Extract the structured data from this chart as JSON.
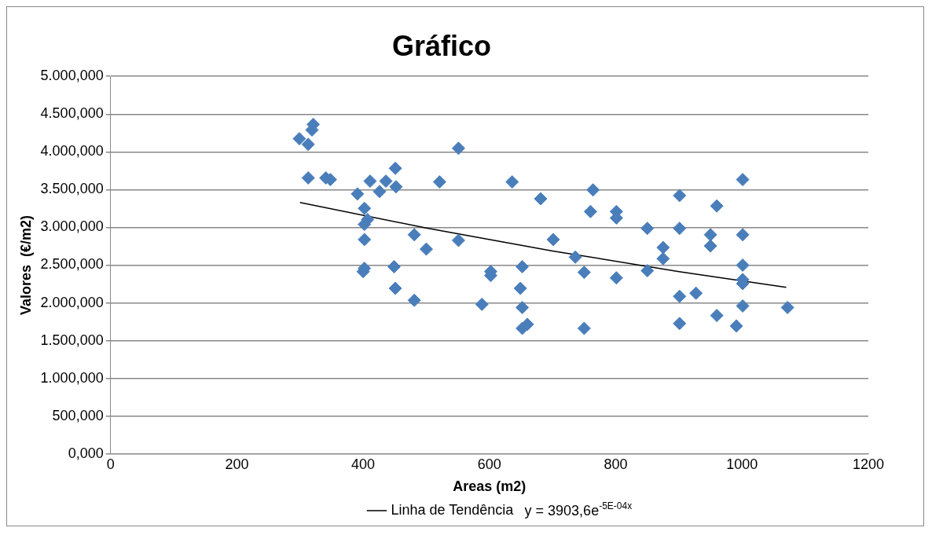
{
  "chart_data": {
    "type": "scatter",
    "title": "Gráfico",
    "xlabel": "Areas (m2)",
    "ylabel": "Valores  (€/m2)",
    "xlim": [
      0,
      1200
    ],
    "xticks": [
      0,
      200,
      400,
      600,
      800,
      1000,
      1200
    ],
    "ylim": [
      0,
      5000
    ],
    "yticks": [
      {
        "value": 0,
        "label": "0,000"
      },
      {
        "value": 500,
        "label": "500,000"
      },
      {
        "value": 1000,
        "label": "1.000,000"
      },
      {
        "value": 1500,
        "label": "1.500,000"
      },
      {
        "value": 2000,
        "label": "2.000,000"
      },
      {
        "value": 2500,
        "label": "2.500,000"
      },
      {
        "value": 3000,
        "label": "3.000,000"
      },
      {
        "value": 3500,
        "label": "3.500,000"
      },
      {
        "value": 4000,
        "label": "4.000,000"
      },
      {
        "value": 4500,
        "label": "4.500,000"
      },
      {
        "value": 5000,
        "label": "5.000,000"
      }
    ],
    "grid": "y",
    "legend": "bottom",
    "marker": "diamond",
    "series": [
      {
        "color": "#4a7ebb",
        "x": [
          299,
          313,
          321,
          319,
          313,
          341,
          348,
          391,
          402,
          402,
          407,
          402,
          400,
          402,
          411,
          426,
          436,
          451,
          452,
          449,
          451,
          481,
          481,
          500,
          521,
          551,
          551,
          588,
          602,
          602,
          636,
          649,
          652,
          652,
          652,
          660,
          681,
          701,
          736,
          750,
          750,
          764,
          760,
          801,
          801,
          801,
          850,
          850,
          875,
          875,
          901,
          901,
          901,
          901,
          927,
          950,
          950,
          960,
          960,
          991,
          1001,
          1001,
          1001,
          1001,
          1001,
          1001,
          1072
        ],
        "values": [
          4174,
          4100,
          4364,
          4290,
          3655,
          3655,
          3633,
          3443,
          3252,
          3040,
          3104,
          2839,
          2415,
          2458,
          3612,
          3475,
          3612,
          3782,
          3538,
          2479,
          2193,
          2034,
          2903,
          2712,
          3602,
          4047,
          2828,
          1981,
          2415,
          2362,
          3602,
          2193,
          2479,
          1939,
          1663,
          1716,
          3379,
          2839,
          2606,
          2405,
          1663,
          3496,
          3210,
          3210,
          3125,
          2331,
          2987,
          2426,
          2733,
          2585,
          3422,
          2987,
          2087,
          1727,
          2129,
          2903,
          2754,
          1833,
          3284,
          1695,
          3633,
          2903,
          2500,
          2309,
          2256,
          1960,
          1939
        ]
      },
      {
        "type": "line",
        "name": "Linha de Tendência",
        "color": "#000000",
        "marker": "none",
        "x": [
          300,
          500,
          700,
          900,
          1070
        ],
        "values": [
          3330,
          2992,
          2688,
          2415,
          2205
        ]
      }
    ],
    "annotations": [
      "y = 3903,6e$^{-5E-04x}$"
    ]
  }
}
